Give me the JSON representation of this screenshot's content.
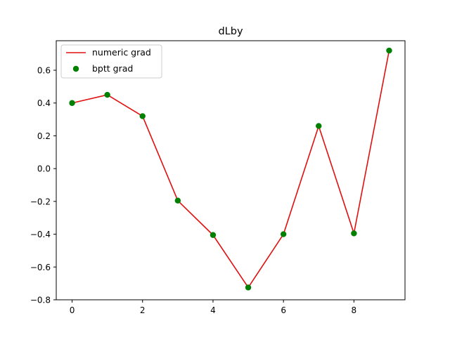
{
  "chart_data": {
    "type": "line",
    "title": "dLby",
    "xlabel": "",
    "ylabel": "",
    "x": [
      0,
      1,
      2,
      3,
      4,
      5,
      6,
      7,
      8,
      9
    ],
    "xlim": [
      -0.45,
      9.45
    ],
    "ylim": [
      -0.8,
      0.78
    ],
    "xticks": [
      0,
      2,
      4,
      6,
      8
    ],
    "yticks": [
      -0.8,
      -0.6,
      -0.4,
      -0.2,
      0.0,
      0.2,
      0.4,
      0.6
    ],
    "ytick_labels": [
      "−0.8",
      "−0.6",
      "−0.4",
      "−0.2",
      "0.0",
      "0.2",
      "0.4",
      "0.6"
    ],
    "grid": false,
    "legend_position": "top-left",
    "series": [
      {
        "name": "numeric grad",
        "style": "line",
        "color": "#e01010",
        "values": [
          0.4,
          0.45,
          0.32,
          -0.195,
          -0.405,
          -0.725,
          -0.4,
          0.26,
          -0.395,
          0.72
        ]
      },
      {
        "name": "bptt grad",
        "style": "markers",
        "color": "#008000",
        "values": [
          0.4,
          0.45,
          0.32,
          -0.195,
          -0.405,
          -0.725,
          -0.4,
          0.26,
          -0.395,
          0.72
        ]
      }
    ]
  }
}
